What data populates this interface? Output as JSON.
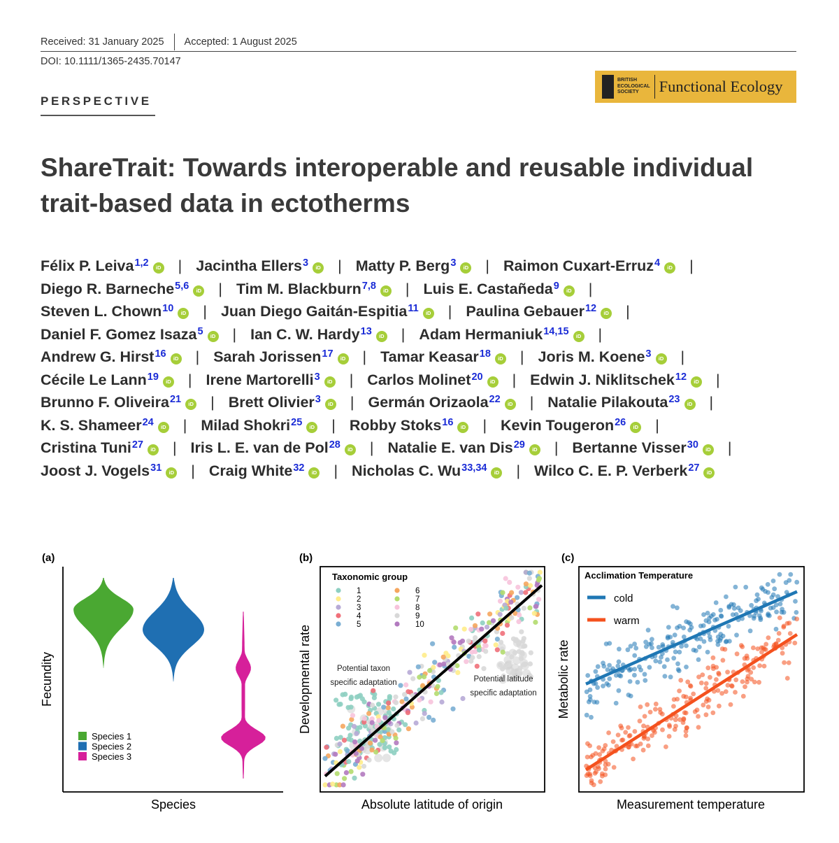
{
  "header": {
    "received": "Received: 31 January 2025",
    "accepted": "Accepted: 1 August 2025",
    "doi": "DOI: 10.1111/1365-2435.70147",
    "section": "PERSPECTIVE",
    "journal": {
      "society": [
        "BRITISH",
        "ECOLOGICAL",
        "SOCIETY"
      ],
      "name": "Functional Ecology",
      "color": "#e9b63c"
    }
  },
  "title": "ShareTrait: Towards interoperable and reusable individual trait-based data in ectotherms",
  "orcid_icon": "orcid-icon",
  "orcid_text": "iD",
  "author_lines": [
    [
      {
        "name": "Félix P. Leiva",
        "aff": "1,2"
      },
      {
        "name": "Jacintha Ellers",
        "aff": "3"
      },
      {
        "name": "Matty P. Berg",
        "aff": "3"
      },
      {
        "name": "Raimon Cuxart-Erruz",
        "aff": "4"
      }
    ],
    [
      {
        "name": "Diego R. Barneche",
        "aff": "5,6"
      },
      {
        "name": "Tim M. Blackburn",
        "aff": "7,8"
      },
      {
        "name": "Luis E. Castañeda",
        "aff": "9"
      }
    ],
    [
      {
        "name": "Steven L. Chown",
        "aff": "10"
      },
      {
        "name": "Juan Diego Gaitán-Espitia",
        "aff": "11"
      },
      {
        "name": "Paulina Gebauer",
        "aff": "12"
      }
    ],
    [
      {
        "name": "Daniel F. Gomez Isaza",
        "aff": "5"
      },
      {
        "name": "Ian C. W. Hardy",
        "aff": "13"
      },
      {
        "name": "Adam Hermaniuk",
        "aff": "14,15"
      }
    ],
    [
      {
        "name": "Andrew G. Hirst",
        "aff": "16"
      },
      {
        "name": "Sarah Jorissen",
        "aff": "17"
      },
      {
        "name": "Tamar Keasar",
        "aff": "18"
      },
      {
        "name": "Joris M. Koene",
        "aff": "3"
      }
    ],
    [
      {
        "name": "Cécile Le Lann",
        "aff": "19"
      },
      {
        "name": "Irene Martorelli",
        "aff": "3"
      },
      {
        "name": "Carlos Molinet",
        "aff": "20"
      },
      {
        "name": "Edwin J. Niklitschek",
        "aff": "12"
      }
    ],
    [
      {
        "name": "Brunno F. Oliveira",
        "aff": "21"
      },
      {
        "name": "Brett Olivier",
        "aff": "3"
      },
      {
        "name": "Germán Orizaola",
        "aff": "22"
      },
      {
        "name": "Natalie Pilakouta",
        "aff": "23"
      }
    ],
    [
      {
        "name": "K. S. Shameer",
        "aff": "24"
      },
      {
        "name": "Milad Shokri",
        "aff": "25"
      },
      {
        "name": "Robby Stoks",
        "aff": "16"
      },
      {
        "name": "Kevin Tougeron",
        "aff": "26"
      }
    ],
    [
      {
        "name": "Cristina Tuni",
        "aff": "27"
      },
      {
        "name": "Iris L. E. van de Pol",
        "aff": "28"
      },
      {
        "name": "Natalie E. van Dis",
        "aff": "29"
      },
      {
        "name": "Bertanne Visser",
        "aff": "30"
      }
    ],
    [
      {
        "name": "Joost J. Vogels",
        "aff": "31"
      },
      {
        "name": "Craig White",
        "aff": "32"
      },
      {
        "name": "Nicholas C. Wu",
        "aff": "33,34"
      },
      {
        "name": "Wilco C. E. P. Verberk",
        "aff": "27"
      }
    ]
  ],
  "separator": "|",
  "chart_data": [
    {
      "panel": "(a)",
      "type": "violin",
      "xlabel": "Species",
      "ylabel": "Fecundity",
      "categories": [
        "Species 1",
        "Species 2",
        "Species 3"
      ],
      "colors": [
        "#4aa832",
        "#1f6fb2",
        "#d6209a"
      ],
      "legend": [
        "Species 1",
        "Species 2",
        "Species 3"
      ],
      "legend_position": "bottom-left",
      "note": "relative fecundity scale 0-1",
      "ranges": [
        [
          0.55,
          0.95
        ],
        [
          0.49,
          0.95
        ],
        [
          0.06,
          0.8
        ]
      ],
      "modes": [
        0.81,
        0.72,
        0.24
      ]
    },
    {
      "panel": "(b)",
      "type": "scatter",
      "xlabel": "Absolute latitude of origin",
      "ylabel": "Developmental rate",
      "legend_title": "Taxonomic group",
      "legend_position": "top-left",
      "groups": [
        "1",
        "2",
        "3",
        "4",
        "5",
        "6",
        "7",
        "8",
        "9",
        "10"
      ],
      "group_colors": [
        "#8ecfc1",
        "#ffec8a",
        "#b7aad6",
        "#f0707a",
        "#7aaed3",
        "#f5a65e",
        "#b3dc6e",
        "#f7c3dc",
        "#d8d8d8",
        "#b27abf"
      ],
      "trend": {
        "x": [
          0,
          1
        ],
        "y": [
          0.05,
          0.93
        ],
        "color": "#000000"
      },
      "annotations": [
        "Potential taxon\nspecific adaptation",
        "Potential latitude\nspecific adaptation"
      ]
    },
    {
      "panel": "(c)",
      "type": "scatter",
      "xlabel": "Measurement temperature",
      "ylabel": "Metabolic rate",
      "legend_title": "Acclimation Temperature",
      "legend_position": "top-left",
      "series": [
        {
          "name": "cold",
          "color": "#1f77b4",
          "trend": {
            "x": [
              0,
              1
            ],
            "y": [
              0.48,
              0.91
            ]
          }
        },
        {
          "name": "warm",
          "color": "#f4511e",
          "trend": {
            "x": [
              0,
              1
            ],
            "y": [
              0.08,
              0.71
            ]
          }
        }
      ]
    }
  ]
}
